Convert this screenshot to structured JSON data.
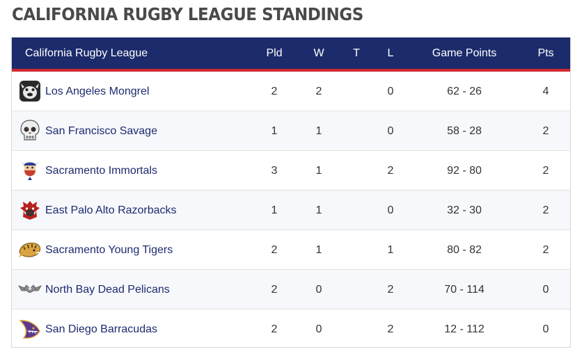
{
  "page": {
    "title": "CALIFORNIA RUGBY LEAGUE STANDINGS"
  },
  "table": {
    "headers": {
      "team": "California Rugby League",
      "pld": "Pld",
      "w": "W",
      "t": "T",
      "l": "L",
      "game_points": "Game Points",
      "pts": "Pts"
    },
    "rows": [
      {
        "team": "Los Angeles Mongrel",
        "logo": "bulldog-logo",
        "pld": "2",
        "w": "2",
        "t": "",
        "l": "0",
        "game_points": "62 - 26",
        "pts": "4"
      },
      {
        "team": "San Francisco Savage",
        "logo": "skull-logo",
        "pld": "1",
        "w": "1",
        "t": "",
        "l": "0",
        "game_points": "58 - 28",
        "pts": "2"
      },
      {
        "team": "Sacramento Immortals",
        "logo": "viking-logo",
        "pld": "3",
        "w": "1",
        "t": "",
        "l": "2",
        "game_points": "92 - 80",
        "pts": "2"
      },
      {
        "team": "East Palo Alto Razorbacks",
        "logo": "boar-logo",
        "pld": "1",
        "w": "1",
        "t": "",
        "l": "0",
        "game_points": "32 - 30",
        "pts": "2"
      },
      {
        "team": "Sacramento Young Tigers",
        "logo": "tiger-logo",
        "pld": "2",
        "w": "1",
        "t": "",
        "l": "1",
        "game_points": "80 - 82",
        "pts": "2"
      },
      {
        "team": "North Bay Dead Pelicans",
        "logo": "pelican-logo",
        "pld": "2",
        "w": "0",
        "t": "",
        "l": "2",
        "game_points": "70 - 114",
        "pts": "0"
      },
      {
        "team": "San Diego Barracudas",
        "logo": "barracuda-logo",
        "pld": "2",
        "w": "0",
        "t": "",
        "l": "2",
        "game_points": "12 - 112",
        "pts": "0"
      }
    ]
  },
  "colors": {
    "header_bg": "#1c2b6b",
    "header_accent": "#d0282e",
    "team_link": "#1e2a6e",
    "title_text": "#4a4a4a"
  }
}
